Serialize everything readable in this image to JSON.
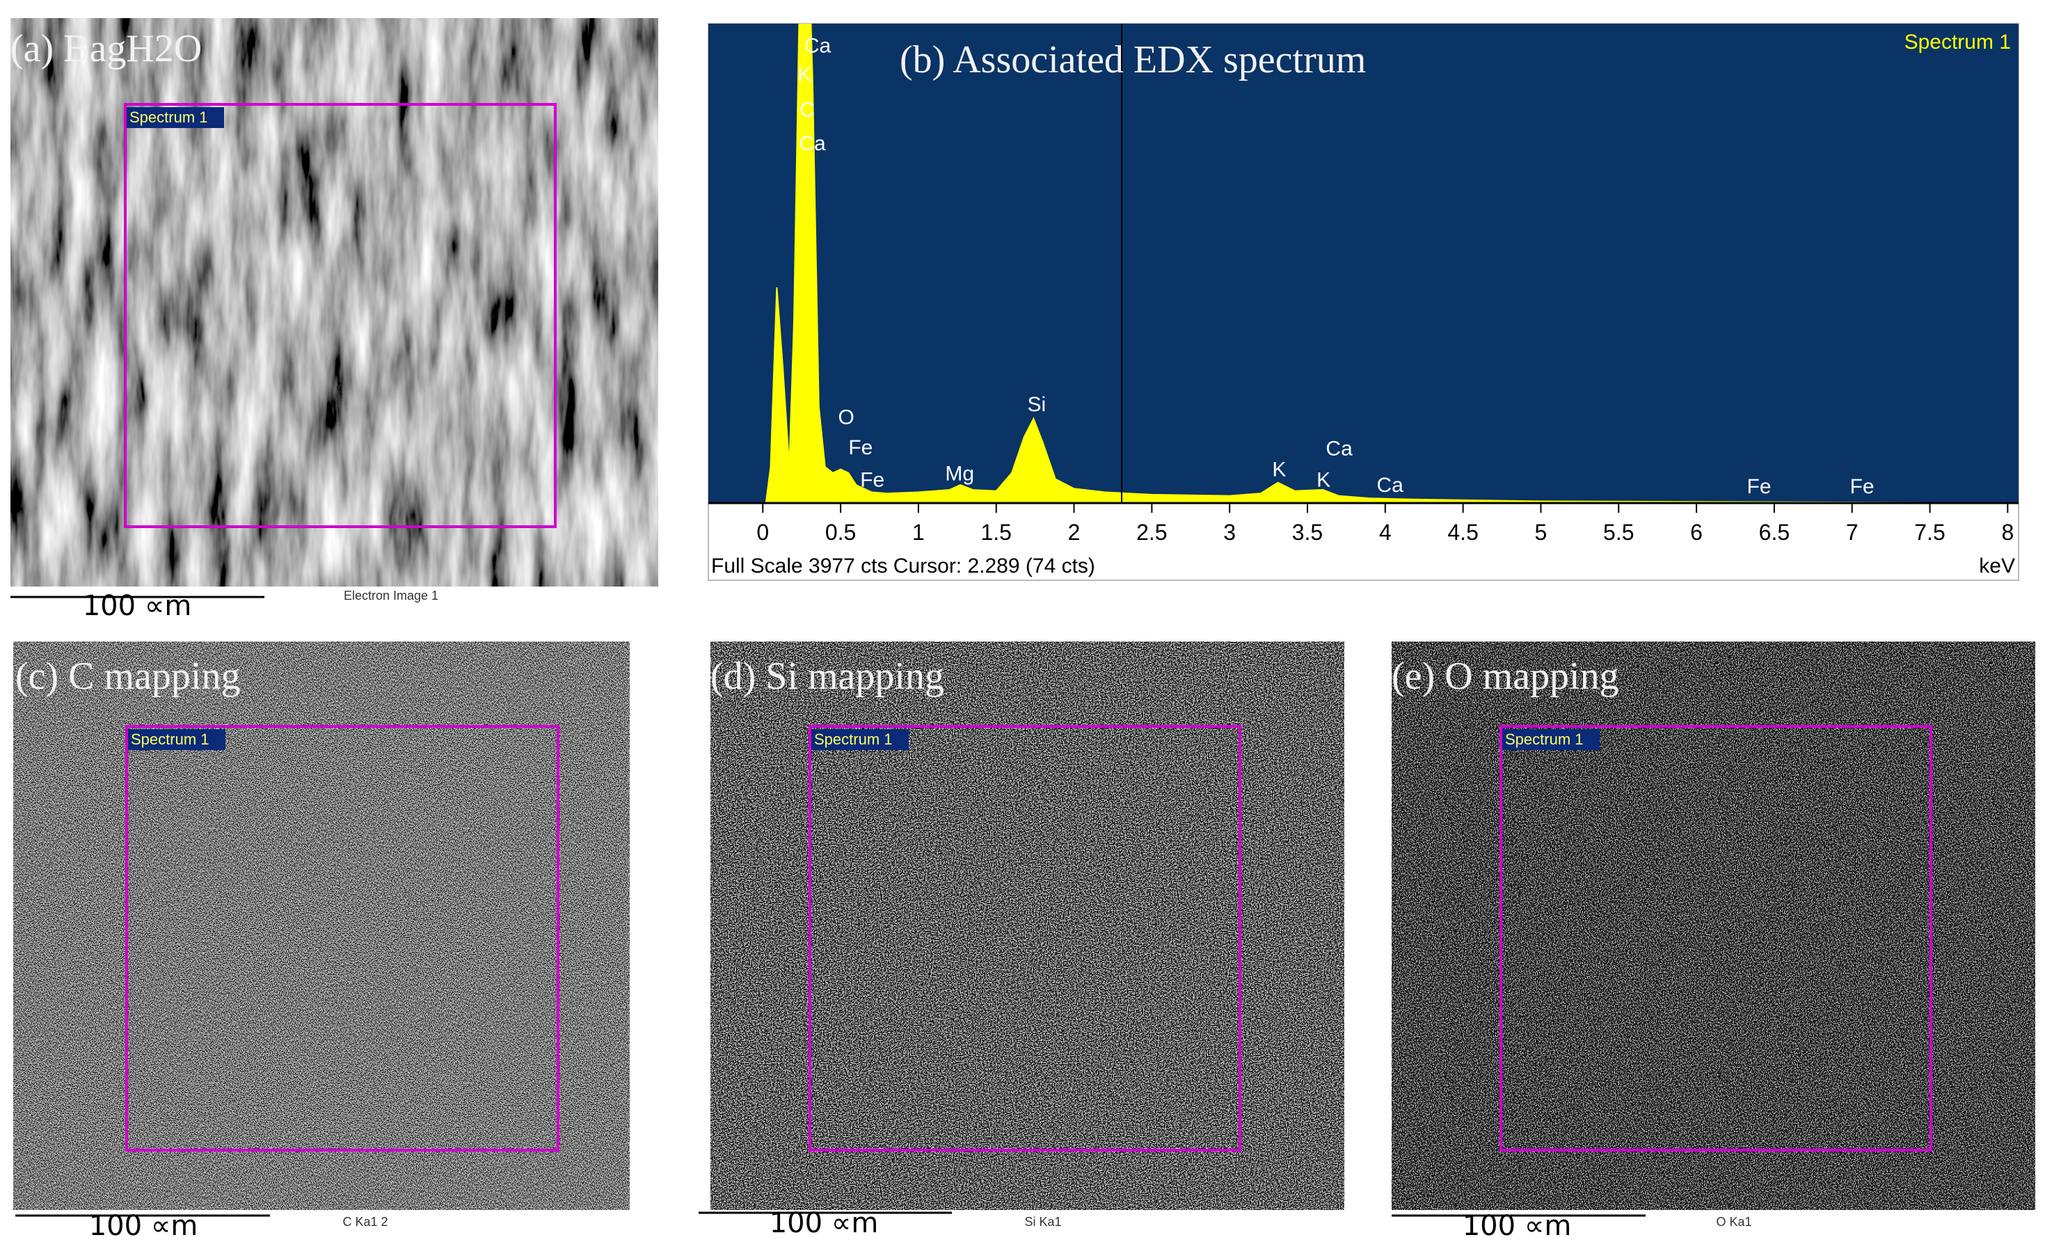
{
  "images": [
    {
      "title": "(a) BagH2O",
      "region_label": "Spectrum 1",
      "scale_bar": "100 ∝m",
      "caption": "Electron Image 1"
    },
    {
      "title": "(c) C mapping",
      "region_label": "Spectrum 1",
      "scale_bar": "100 ∝m",
      "caption": "C Ka1 2"
    },
    {
      "title": "(d) Si mapping",
      "region_label": "Spectrum 1",
      "scale_bar": "100 ∝m",
      "caption": "Si Ka1"
    },
    {
      "title": "(e) O mapping",
      "region_label": "Spectrum 1",
      "scale_bar": "100 ∝m",
      "caption": "O Ka1"
    }
  ],
  "chart_data": {
    "type": "area",
    "title": "(b) Associated EDX spectrum",
    "x": [
      0,
      0.02,
      0.05,
      0.09,
      0.13,
      0.17,
      0.2,
      0.24,
      0.28,
      0.32,
      0.36,
      0.4,
      0.45,
      0.5,
      0.55,
      0.6,
      0.7,
      0.8,
      1.0,
      1.2,
      1.27,
      1.35,
      1.5,
      1.6,
      1.68,
      1.74,
      1.8,
      1.88,
      2.0,
      2.2,
      2.5,
      3.0,
      3.2,
      3.31,
      3.42,
      3.6,
      3.7,
      3.9,
      4.2,
      5,
      6,
      7,
      8
    ],
    "series": [
      {
        "name": "Spectrum 1",
        "color": "#ffff00",
        "values": [
          0,
          0,
          300,
          1790,
          1100,
          300,
          1500,
          4500,
          5300,
          3500,
          800,
          300,
          250,
          280,
          250,
          150,
          90,
          80,
          90,
          110,
          150,
          110,
          100,
          250,
          550,
          700,
          500,
          200,
          120,
          90,
          70,
          60,
          80,
          170,
          100,
          110,
          60,
          40,
          30,
          15,
          10,
          5,
          0
        ]
      }
    ],
    "xlim": [
      -0.35,
      8.07
    ],
    "ylim": [
      0,
      3977
    ],
    "xticks": [
      0,
      0.5,
      1,
      1.5,
      2,
      2.5,
      3,
      3.5,
      4,
      4.5,
      5,
      5.5,
      6,
      6.5,
      7,
      7.5,
      8
    ],
    "xlabel": "keV",
    "footer": "Full Scale 3977 cts Cursor: 2.289  (74 cts)",
    "peak_labels": [
      "Ca",
      "K",
      "C",
      "Ca",
      "O",
      "Fe",
      "Fe",
      "Mg",
      "Si",
      "K",
      "Ca",
      "K",
      "Ca",
      "Fe",
      "Fe"
    ],
    "background": "#0a3366"
  }
}
